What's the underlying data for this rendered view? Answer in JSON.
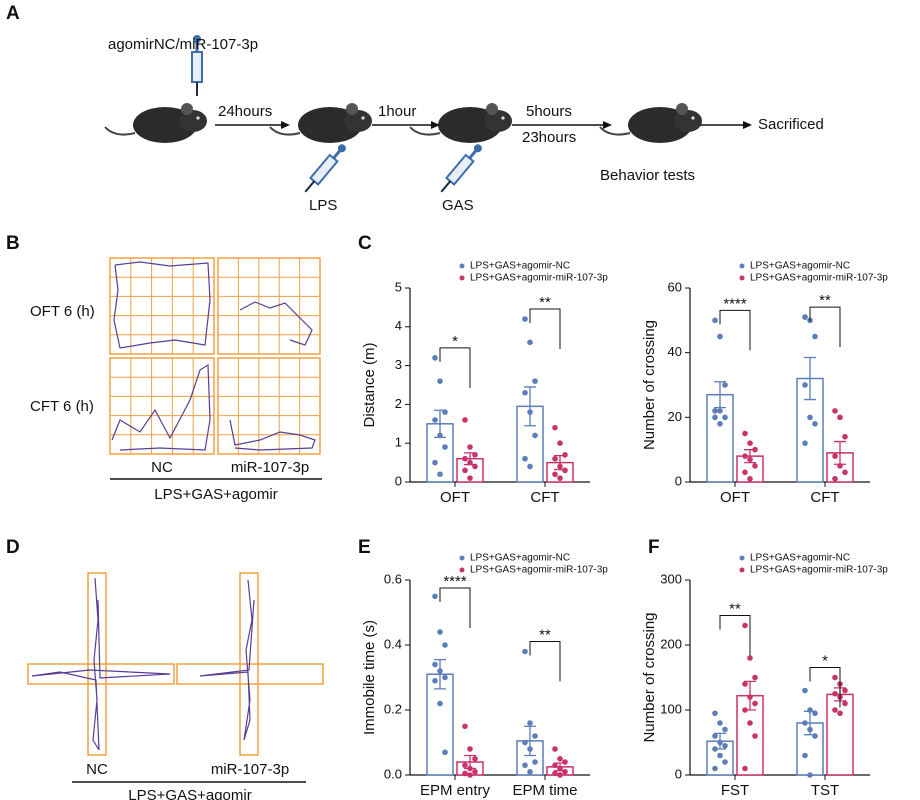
{
  "panel_labels": [
    "A",
    "B",
    "C",
    "D",
    "E",
    "F"
  ],
  "diagram": {
    "injection_top": "agomirNC/miR-107-3p",
    "intervals": [
      "24hours",
      "1hour",
      "5hours",
      "23hours"
    ],
    "injections": [
      "LPS",
      "GAS"
    ],
    "behavior": "Behavior tests",
    "end": "Sacrificed"
  },
  "tracks_b": {
    "rows": [
      "OFT 6 (h)",
      "CFT 6 (h)"
    ],
    "columns": [
      "NC",
      "miR-107-3p"
    ],
    "group": "LPS+GAS+agomir"
  },
  "tracks_d": {
    "columns": [
      "NC",
      "miR-107-3p"
    ],
    "group": "LPS+GAS+agomir"
  },
  "chart_data": [
    {
      "type": "bar",
      "ylabel": "Distance (m)",
      "categories": [
        "OFT",
        "CFT"
      ],
      "ylim": [
        0,
        5
      ],
      "yticks": [
        0,
        1,
        2,
        3,
        4,
        5
      ],
      "series": [
        {
          "name": "LPS+GAS+agomir-NC",
          "color": "#5b7db8",
          "values": [
            1.5,
            1.95
          ],
          "errors": [
            0.35,
            0.5
          ],
          "points": [
            [
              3.2,
              2.6,
              1.8,
              1.6,
              1.2,
              0.9,
              0.5,
              0.2
            ],
            [
              4.2,
              3.6,
              2.6,
              2.3,
              1.8,
              1.2,
              0.6,
              0.4
            ]
          ]
        },
        {
          "name": "LPS+GAS+agomir-miR-107-3p",
          "color": "#c8336a",
          "values": [
            0.6,
            0.5
          ],
          "errors": [
            0.15,
            0.18
          ],
          "points": [
            [
              1.6,
              0.9,
              0.7,
              0.6,
              0.5,
              0.4,
              0.3,
              0.1
            ],
            [
              1.4,
              1.0,
              0.7,
              0.6,
              0.4,
              0.3,
              0.2,
              0.1
            ]
          ]
        }
      ],
      "significance": [
        {
          "category": 0,
          "label": "*"
        },
        {
          "category": 1,
          "label": "**"
        }
      ]
    },
    {
      "type": "bar",
      "ylabel": "Number of crossing",
      "categories": [
        "OFT",
        "CFT"
      ],
      "ylim": [
        0,
        60
      ],
      "yticks": [
        0,
        20,
        40,
        60
      ],
      "series": [
        {
          "name": "LPS+GAS+agomir-NC",
          "color": "#5b7db8",
          "values": [
            27,
            32
          ],
          "errors": [
            4,
            6.5
          ],
          "points": [
            [
              50,
              45,
              30,
              22,
              22,
              20,
              20,
              18
            ],
            [
              51,
              50,
              45,
              30,
              20,
              18,
              12
            ]
          ]
        },
        {
          "name": "LPS+GAS+agomir-miR-107-3p",
          "color": "#c8336a",
          "values": [
            8,
            9
          ],
          "errors": [
            2,
            3.5
          ],
          "points": [
            [
              15,
              12,
              10,
              8,
              7,
              5,
              3,
              1
            ],
            [
              22,
              20,
              14,
              8,
              5,
              3,
              1
            ]
          ]
        }
      ],
      "significance": [
        {
          "category": 0,
          "label": "****"
        },
        {
          "category": 1,
          "label": "**"
        }
      ]
    },
    {
      "type": "bar",
      "ylabel": "Immobile time (s)",
      "categories": [
        "EPM entry",
        "EPM time"
      ],
      "ylim": [
        0,
        0.6
      ],
      "yticks": [
        {
          "value": 0,
          "label": "0.0"
        },
        0.2,
        0.4,
        0.6
      ],
      "series": [
        {
          "name": "LPS+GAS+agomir-NC",
          "color": "#5b7db8",
          "values": [
            0.31,
            0.105
          ],
          "errors": [
            0.045,
            0.045
          ],
          "points": [
            [
              0.55,
              0.44,
              0.4,
              0.34,
              0.32,
              0.3,
              0.29,
              0.22,
              0.07
            ],
            [
              0.38,
              0.16,
              0.12,
              0.1,
              0.08,
              0.04,
              0.03,
              0.01
            ]
          ]
        },
        {
          "name": "LPS+GAS+agomir-miR-107-3p",
          "color": "#c8336a",
          "values": [
            0.04,
            0.025
          ],
          "errors": [
            0.02,
            0.012
          ],
          "points": [
            [
              0.15,
              0.08,
              0.05,
              0.03,
              0.02,
              0.01,
              0.005,
              0
            ],
            [
              0.08,
              0.05,
              0.04,
              0.03,
              0.02,
              0.01,
              0.005,
              0
            ]
          ]
        }
      ],
      "significance": [
        {
          "category": 0,
          "label": "****"
        },
        {
          "category": 1,
          "label": "**"
        }
      ]
    },
    {
      "type": "bar",
      "ylabel": "Number of crossing",
      "categories": [
        "FST",
        "TST"
      ],
      "ylim": [
        0,
        300
      ],
      "yticks": [
        0,
        100,
        200,
        300
      ],
      "series": [
        {
          "name": "LPS+GAS+agomir-NC",
          "color": "#5b7db8",
          "values": [
            52,
            80
          ],
          "errors": [
            12,
            18
          ],
          "points": [
            [
              95,
              80,
              70,
              60,
              50,
              45,
              40,
              30,
              20,
              10
            ],
            [
              130,
              100,
              95,
              80,
              70,
              60,
              30,
              0
            ]
          ]
        },
        {
          "name": "LPS+GAS+agomir-miR-107-3p",
          "color": "#c8336a",
          "values": [
            122,
            124
          ],
          "errors": [
            22,
            10
          ],
          "points": [
            [
              230,
              180,
              150,
              140,
              120,
              110,
              100,
              80,
              60,
              10
            ],
            [
              150,
              140,
              130,
              125,
              120,
              110,
              100,
              95
            ]
          ]
        }
      ],
      "significance": [
        {
          "category": 0,
          "label": "**"
        },
        {
          "category": 1,
          "label": "*"
        }
      ]
    }
  ]
}
